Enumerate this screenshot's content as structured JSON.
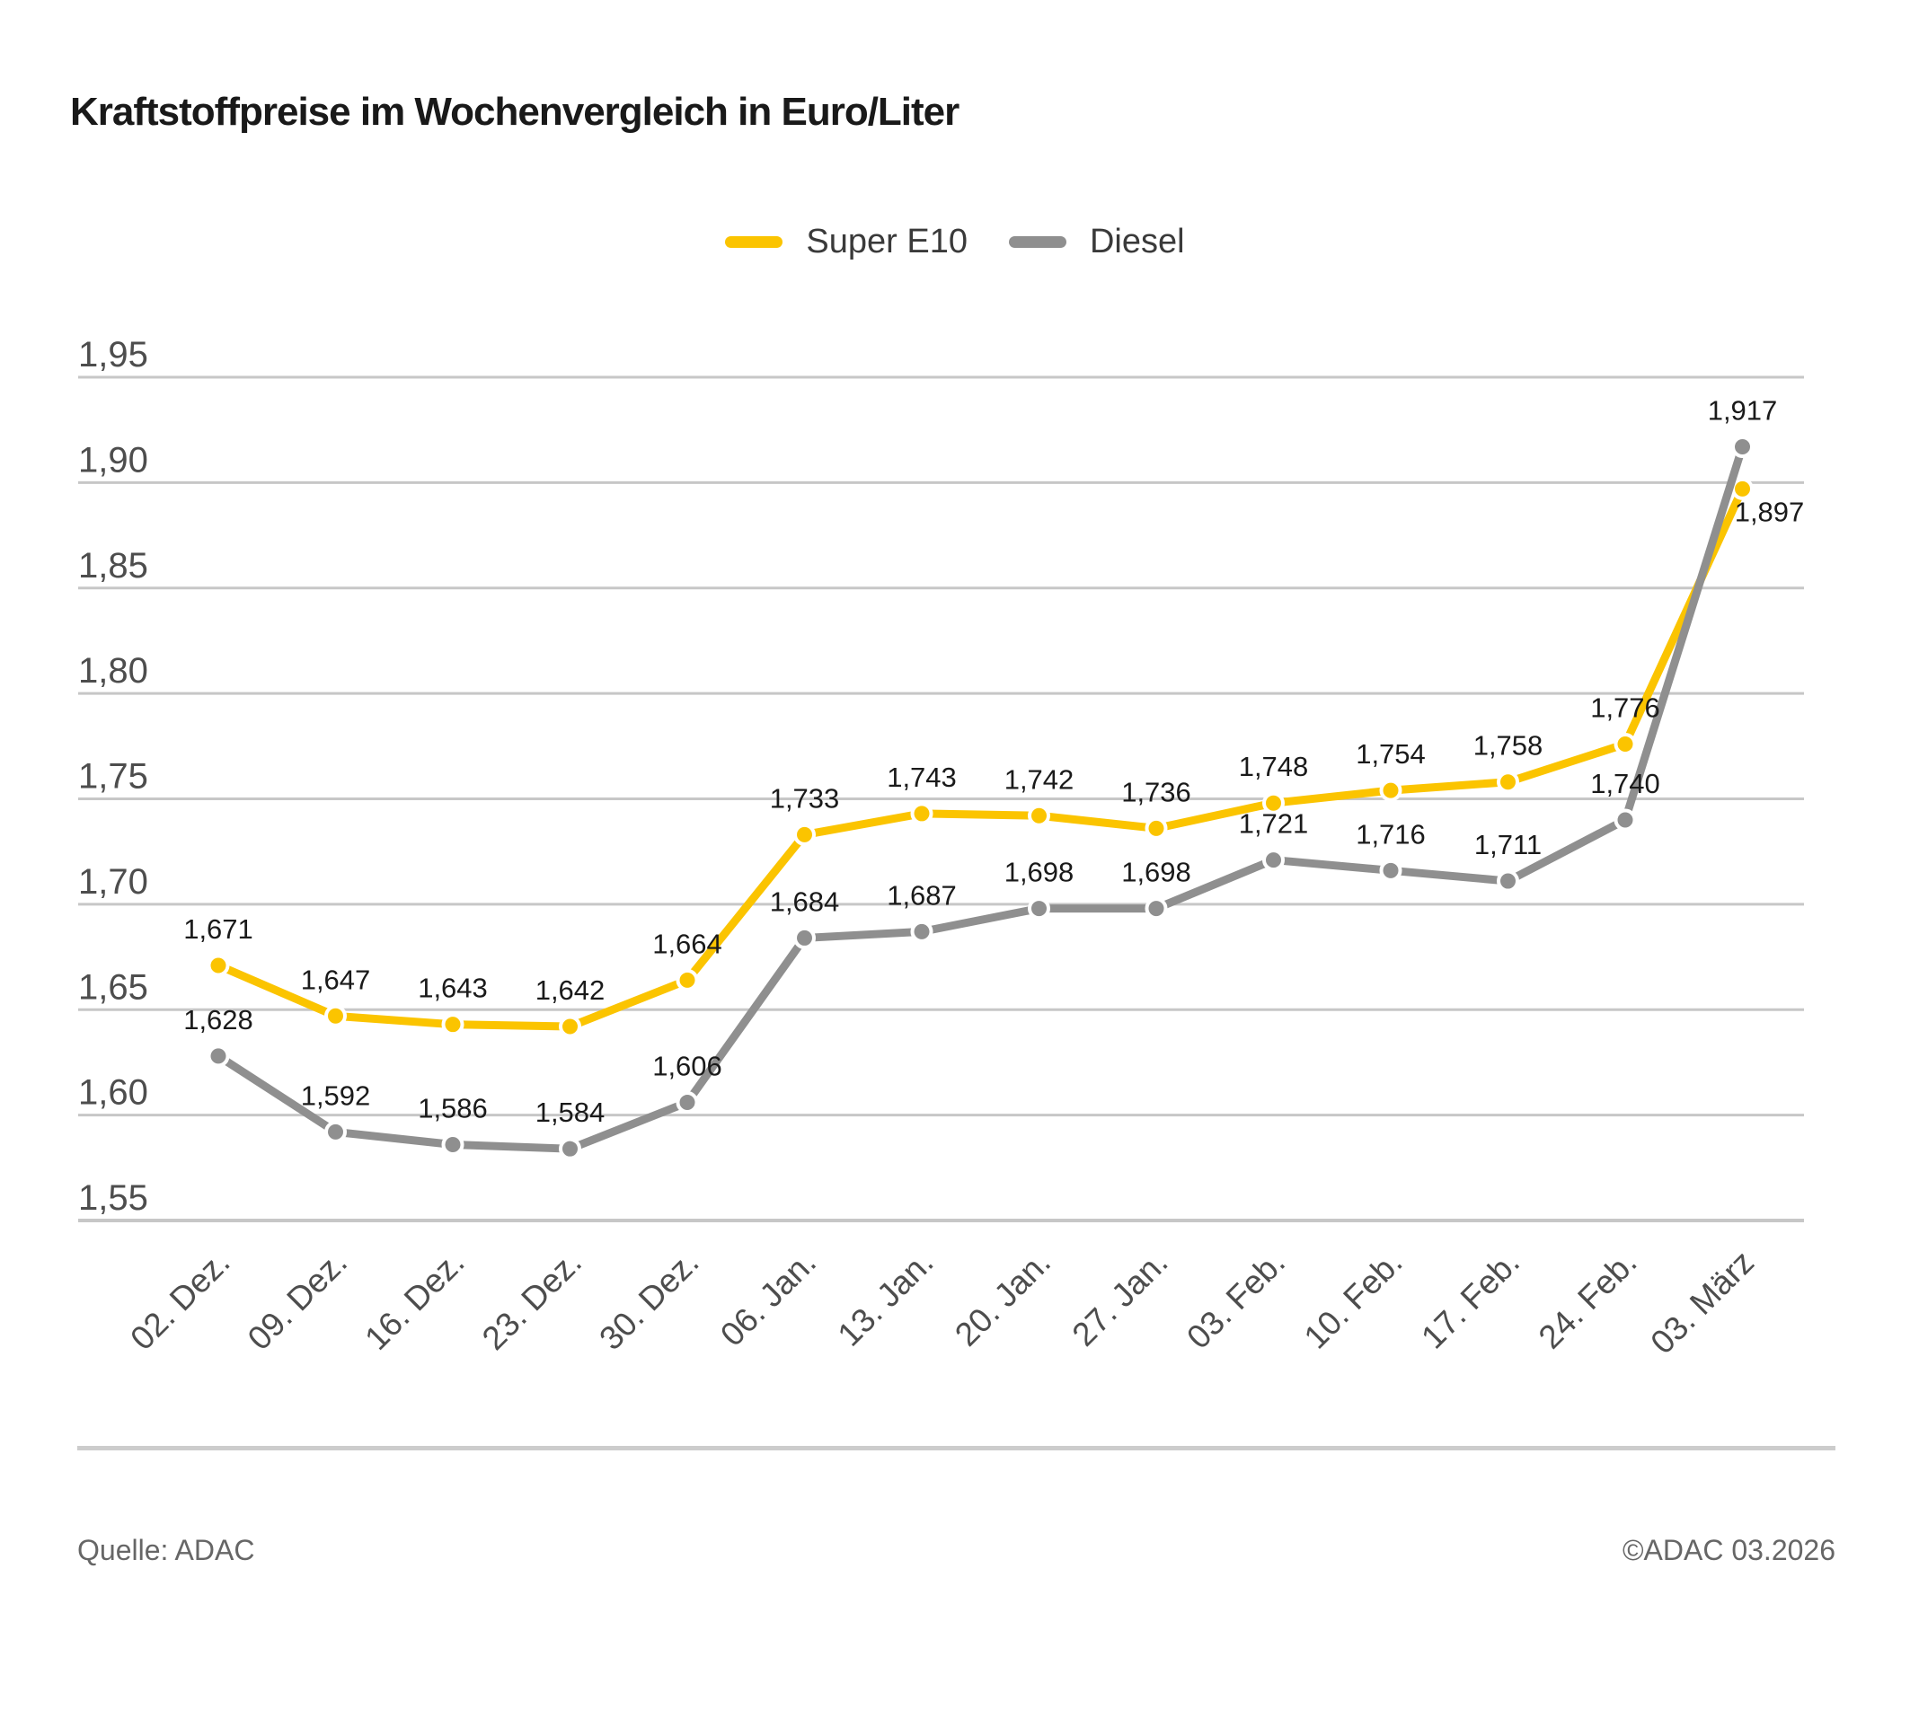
{
  "title": "Kraftstoffpreise im Wochenvergleich in Euro/Liter",
  "legend": {
    "items": [
      {
        "label": "Super E10",
        "color": "#FBC400"
      },
      {
        "label": "Diesel",
        "color": "#8F8F8F"
      }
    ]
  },
  "chart_data": {
    "type": "line",
    "title": "Kraftstoffpreise im Wochenvergleich in Euro/Liter",
    "unit": "Euro/Liter",
    "legend_position": "top",
    "grid": true,
    "categories": [
      "02. Dez.",
      "09. Dez.",
      "16. Dez.",
      "23. Dez.",
      "30. Dez.",
      "06. Jan.",
      "13. Jan.",
      "20. Jan.",
      "27. Jan.",
      "03. Feb.",
      "10. Feb.",
      "17. Feb.",
      "24. Feb.",
      "03. März"
    ],
    "ylim": [
      1.55,
      1.95
    ],
    "y_axis": {
      "ticks": [
        {
          "value": 1.95,
          "label": "1,95"
        },
        {
          "value": 1.9,
          "label": "1,90"
        },
        {
          "value": 1.85,
          "label": "1,85"
        },
        {
          "value": 1.8,
          "label": "1,80"
        },
        {
          "value": 1.75,
          "label": "1,75"
        },
        {
          "value": 1.7,
          "label": "1,70"
        },
        {
          "value": 1.65,
          "label": "1,65"
        },
        {
          "value": 1.6,
          "label": "1,60"
        },
        {
          "value": 1.55,
          "label": "1,55"
        }
      ],
      "grid_color": "#C7C7C7"
    },
    "series": [
      {
        "name": "Super E10",
        "color": "#FBC400",
        "values": [
          1.671,
          1.647,
          1.643,
          1.642,
          1.664,
          1.733,
          1.743,
          1.742,
          1.736,
          1.748,
          1.754,
          1.758,
          1.776,
          1.897
        ],
        "labels": [
          "1,671",
          "1,647",
          "1,643",
          "1,642",
          "1,664",
          "1,733",
          "1,743",
          "1,742",
          "1,736",
          "1,748",
          "1,754",
          "1,758",
          "1,776",
          "1,897"
        ]
      },
      {
        "name": "Diesel",
        "color": "#8F8F8F",
        "values": [
          1.628,
          1.592,
          1.586,
          1.584,
          1.606,
          1.684,
          1.687,
          1.698,
          1.698,
          1.721,
          1.716,
          1.711,
          1.74,
          1.917
        ],
        "labels": [
          "1,628",
          "1,592",
          "1,586",
          "1,584",
          "1,606",
          "1,684",
          "1,687",
          "1,698",
          "1,698",
          "1,721",
          "1,716",
          "1,711",
          "1,740",
          "1,917"
        ]
      }
    ]
  },
  "footer": {
    "source": "Quelle: ADAC",
    "copyright": "©ADAC 03.2026"
  }
}
